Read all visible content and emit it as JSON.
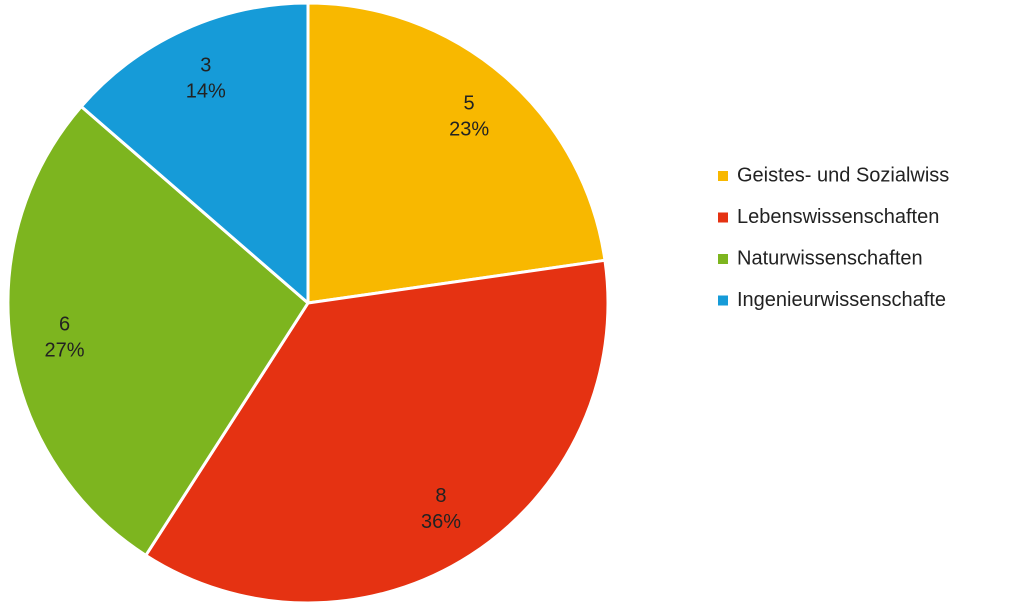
{
  "chart_data": {
    "type": "pie",
    "categories": [
      "Geistes- und Sozialwiss",
      "Lebenswissenschaften",
      "Naturwissenschaften",
      "Ingenieurwissenschafte"
    ],
    "values": [
      5,
      8,
      6,
      3
    ],
    "percentages": [
      23,
      36,
      27,
      14
    ],
    "percentage_labels": [
      "23%",
      "36%",
      "27%",
      "14%"
    ],
    "colors": [
      "#f8b800",
      "#e53212",
      "#7db51f",
      "#169bd8"
    ],
    "legend": "right"
  }
}
